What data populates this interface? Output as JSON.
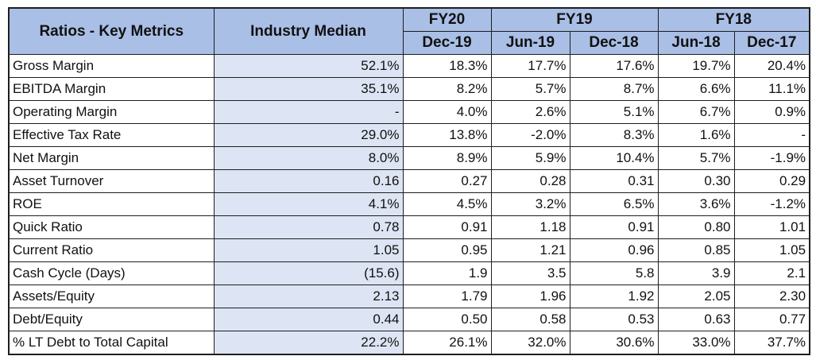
{
  "header": {
    "metric_label": "Ratios - Key Metrics",
    "median_label": "Industry Median",
    "groups": [
      {
        "label": "FY20",
        "span": 1
      },
      {
        "label": "FY19",
        "span": 2
      },
      {
        "label": "FY18",
        "span": 2
      }
    ],
    "periods": [
      "Dec-19",
      "Jun-19",
      "Dec-18",
      "Jun-18",
      "Dec-17"
    ]
  },
  "rows": [
    {
      "metric": "Gross Margin",
      "median": "52.1%",
      "values": [
        "18.3%",
        "17.7%",
        "17.6%",
        "19.7%",
        "20.4%"
      ]
    },
    {
      "metric": "EBITDA Margin",
      "median": "35.1%",
      "values": [
        "8.2%",
        "5.7%",
        "8.7%",
        "6.6%",
        "11.1%"
      ]
    },
    {
      "metric": "Operating Margin",
      "median": "-",
      "values": [
        "4.0%",
        "2.6%",
        "5.1%",
        "6.7%",
        "0.9%"
      ]
    },
    {
      "metric": "Effective Tax Rate",
      "median": "29.0%",
      "values": [
        "13.8%",
        "-2.0%",
        "8.3%",
        "1.6%",
        "-"
      ]
    },
    {
      "metric": "Net Margin",
      "median": "8.0%",
      "values": [
        "8.9%",
        "5.9%",
        "10.4%",
        "5.7%",
        "-1.9%"
      ]
    },
    {
      "metric": "Asset Turnover",
      "median": "0.16",
      "values": [
        "0.27",
        "0.28",
        "0.31",
        "0.30",
        "0.29"
      ]
    },
    {
      "metric": "ROE",
      "median": "4.1%",
      "values": [
        "4.5%",
        "3.2%",
        "6.5%",
        "3.6%",
        "-1.2%"
      ]
    },
    {
      "metric": "Quick Ratio",
      "median": "0.78",
      "values": [
        "0.91",
        "1.18",
        "0.91",
        "0.80",
        "1.01"
      ]
    },
    {
      "metric": "Current Ratio",
      "median": "1.05",
      "values": [
        "0.95",
        "1.21",
        "0.96",
        "0.85",
        "1.05"
      ]
    },
    {
      "metric": "Cash Cycle (Days)",
      "median": "(15.6)",
      "values": [
        "1.9",
        "3.5",
        "5.8",
        "3.9",
        "2.1"
      ]
    },
    {
      "metric": "Assets/Equity",
      "median": "2.13",
      "values": [
        "1.79",
        "1.96",
        "1.92",
        "2.05",
        "2.30"
      ]
    },
    {
      "metric": "Debt/Equity",
      "median": "0.44",
      "values": [
        "0.50",
        "0.58",
        "0.53",
        "0.63",
        "0.77"
      ]
    },
    {
      "metric": "% LT Debt to Total Capital",
      "median": "22.2%",
      "values": [
        "26.1%",
        "32.0%",
        "30.6%",
        "33.0%",
        "37.7%"
      ]
    }
  ]
}
